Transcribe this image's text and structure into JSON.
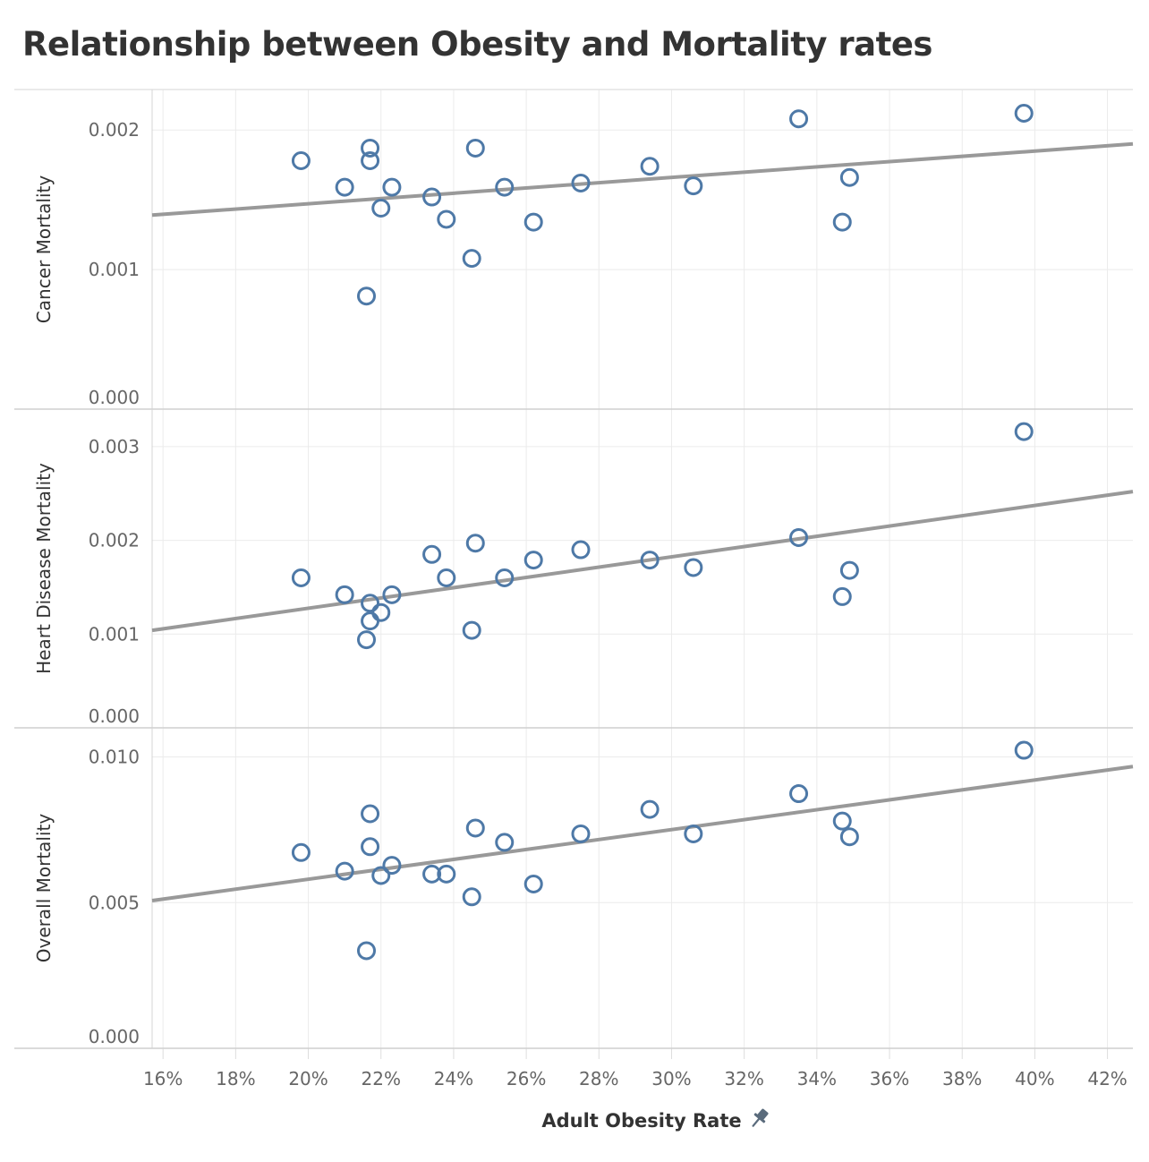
{
  "title": "Relationship between Obesity and Mortality rates",
  "chart_data": {
    "type": "scatter",
    "title": "Relationship between Obesity and Mortality rates",
    "xlabel": "Adult Obesity Rate",
    "xlim": [
      15.7,
      42.7
    ],
    "x_ticks": [
      16,
      18,
      20,
      22,
      24,
      26,
      28,
      30,
      32,
      34,
      36,
      38,
      40,
      42
    ],
    "x_tick_labels": [
      "16%",
      "18%",
      "20%",
      "22%",
      "24%",
      "26%",
      "28%",
      "30%",
      "32%",
      "34%",
      "36%",
      "38%",
      "40%",
      "42%"
    ],
    "x": [
      19.8,
      21.0,
      21.6,
      21.7,
      21.7,
      22.0,
      22.3,
      23.4,
      23.8,
      24.5,
      24.6,
      25.4,
      26.2,
      27.5,
      29.4,
      30.6,
      33.5,
      34.7,
      34.9,
      39.7
    ],
    "grid": true,
    "point_color": "#4e79a7",
    "trend_color": "#999999",
    "panels": [
      {
        "ylabel": "Cancer Mortality",
        "ylim": [
          0,
          0.00229
        ],
        "y_ticks": [
          0.0,
          0.001,
          0.002
        ],
        "y_tick_labels": [
          "0.000",
          "0.001",
          "0.002"
        ],
        "values": [
          0.00178,
          0.00159,
          0.00081,
          0.00187,
          0.00178,
          0.00144,
          0.00159,
          0.00152,
          0.00136,
          0.00108,
          0.00187,
          0.00159,
          0.00134,
          0.00162,
          0.00174,
          0.0016,
          0.00208,
          0.00134,
          0.00166,
          0.00212
        ],
        "trendline": {
          "x": [
            15.7,
            42.7
          ],
          "y": [
            0.00139,
            0.0019
          ]
        }
      },
      {
        "ylabel": "Heart Disease Mortality",
        "ylim": [
          0,
          0.0034
        ],
        "y_ticks": [
          0.0,
          0.001,
          0.002,
          0.003
        ],
        "y_tick_labels": [
          "0.000",
          "0.001",
          "0.002",
          "0.003"
        ],
        "values": [
          0.0016,
          0.00142,
          0.00094,
          0.00114,
          0.00133,
          0.00123,
          0.00142,
          0.00185,
          0.0016,
          0.00104,
          0.00197,
          0.0016,
          0.00179,
          0.0019,
          0.00179,
          0.00171,
          0.00203,
          0.0014,
          0.00168,
          0.00316
        ],
        "trendline": {
          "x": [
            15.7,
            42.7
          ],
          "y": [
            0.00104,
            0.00252
          ]
        }
      },
      {
        "ylabel": "Overall Mortality",
        "ylim": [
          0,
          0.011
        ],
        "y_ticks": [
          0.0,
          0.005,
          0.01
        ],
        "y_tick_labels": [
          "0.000",
          "0.005",
          "0.010"
        ],
        "values": [
          0.00672,
          0.00608,
          0.00335,
          0.00692,
          0.00805,
          0.00593,
          0.00628,
          0.00598,
          0.00598,
          0.0052,
          0.00756,
          0.00707,
          0.00564,
          0.00736,
          0.0082,
          0.00736,
          0.00874,
          0.0078,
          0.00726,
          0.01023
        ],
        "trendline": {
          "x": [
            15.7,
            42.7
          ],
          "y": [
            0.00507,
            0.00967
          ]
        }
      }
    ]
  }
}
